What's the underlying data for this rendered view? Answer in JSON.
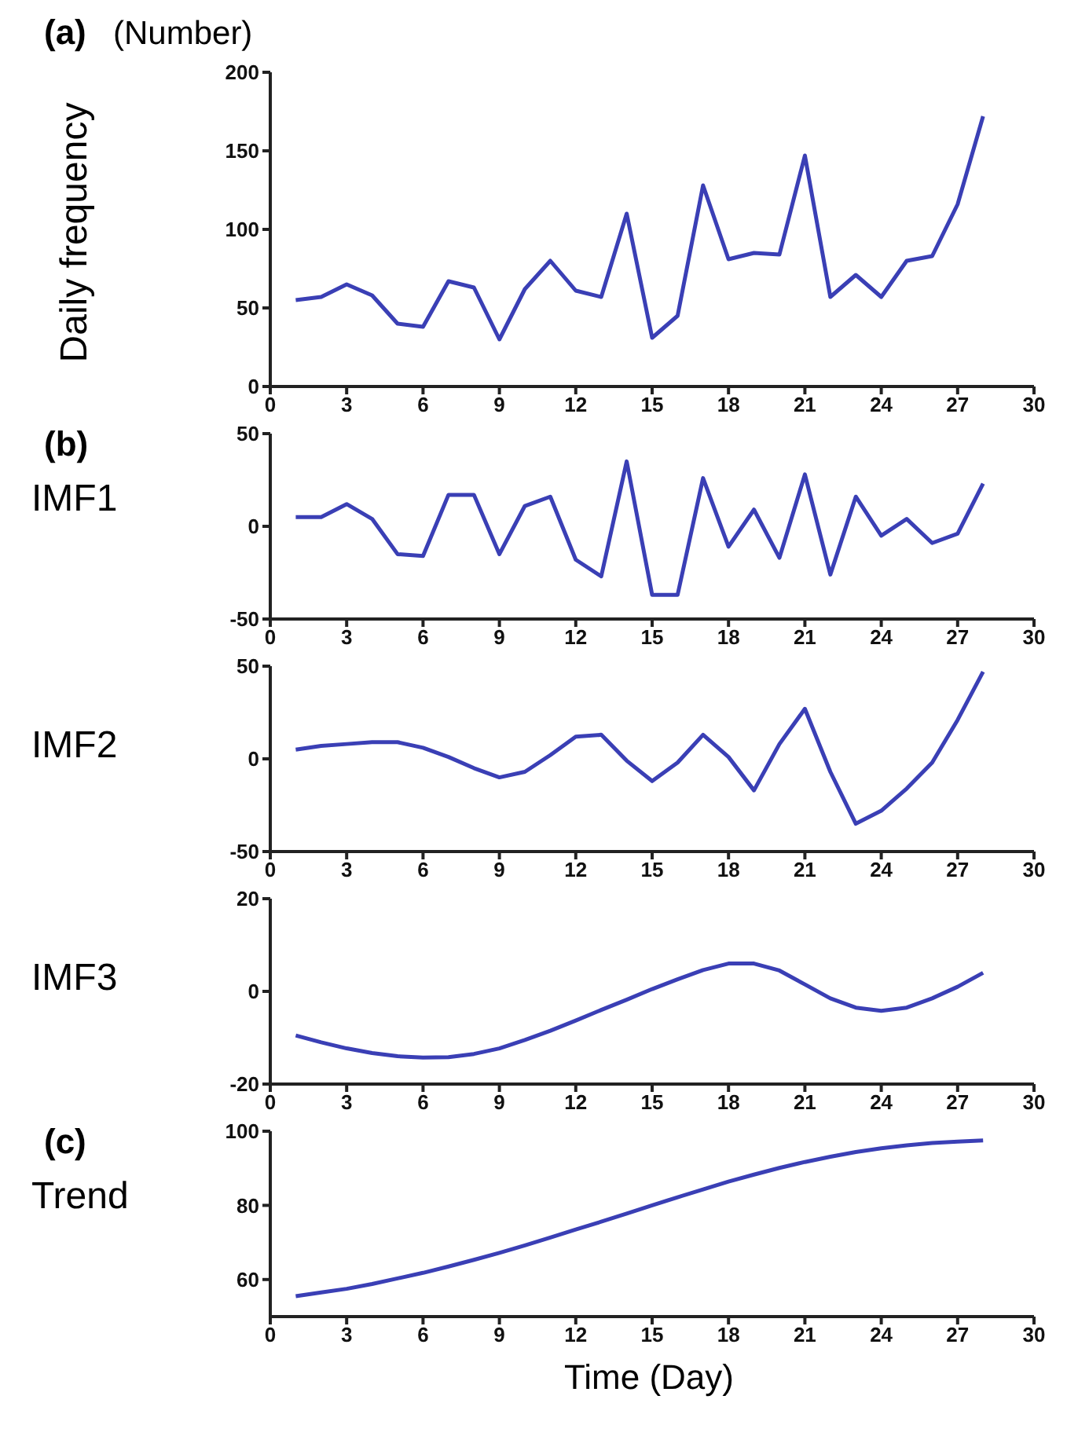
{
  "chart_data": [
    {
      "type": "line",
      "title": "(a)",
      "ylabel": "Daily frequency",
      "annotations": [
        "(Number)"
      ],
      "x": [
        1,
        2,
        3,
        4,
        5,
        6,
        7,
        8,
        9,
        10,
        11,
        12,
        13,
        14,
        15,
        16,
        17,
        18,
        19,
        20,
        21,
        22,
        23,
        24,
        25,
        26,
        27,
        28
      ],
      "values": [
        55,
        57,
        65,
        58,
        40,
        38,
        67,
        63,
        30,
        62,
        80,
        61,
        57,
        110,
        31,
        45,
        128,
        81,
        85,
        84,
        147,
        57,
        71,
        57,
        80,
        83,
        116,
        172
      ],
      "color": "#3a3fb5",
      "marker": "none",
      "grid": false,
      "xlim": [
        0,
        30
      ],
      "xticks": [
        0,
        3,
        6,
        9,
        12,
        15,
        18,
        21,
        24,
        27,
        30
      ],
      "ylim": [
        0,
        200
      ],
      "yticks": [
        0,
        50,
        100,
        150,
        200
      ]
    },
    {
      "type": "line",
      "title": "(b)",
      "ylabel": "IMF1",
      "x": [
        1,
        2,
        3,
        4,
        5,
        6,
        7,
        8,
        9,
        10,
        11,
        12,
        13,
        14,
        15,
        16,
        17,
        18,
        19,
        20,
        21,
        22,
        23,
        24,
        25,
        26,
        27,
        28
      ],
      "values": [
        5,
        5,
        12,
        4,
        -15,
        -16,
        17,
        17,
        -15,
        11,
        16,
        -18,
        -27,
        35,
        -37,
        -37,
        26,
        -11,
        9,
        -17,
        28,
        -26,
        16,
        -5,
        4,
        -9,
        -4,
        23
      ],
      "color": "#3a3fb5",
      "marker": "none",
      "grid": false,
      "xlim": [
        0,
        30
      ],
      "xticks": [
        0,
        3,
        6,
        9,
        12,
        15,
        18,
        21,
        24,
        27,
        30
      ],
      "ylim": [
        -50,
        50
      ],
      "yticks": [
        -50,
        0,
        50
      ]
    },
    {
      "type": "line",
      "ylabel": "IMF2",
      "x": [
        1,
        2,
        3,
        4,
        5,
        6,
        7,
        8,
        9,
        10,
        11,
        12,
        13,
        14,
        15,
        16,
        17,
        18,
        19,
        20,
        21,
        22,
        23,
        24,
        25,
        26,
        27,
        28
      ],
      "values": [
        5,
        7,
        8,
        9,
        9,
        6,
        1,
        -5,
        -10,
        -7,
        2,
        12,
        13,
        -1,
        -12,
        -2,
        13,
        1,
        -17,
        8,
        27,
        -7,
        -35,
        -28,
        -16,
        -2,
        21,
        47
      ],
      "color": "#3a3fb5",
      "marker": "none",
      "grid": false,
      "xlim": [
        0,
        30
      ],
      "xticks": [
        0,
        3,
        6,
        9,
        12,
        15,
        18,
        21,
        24,
        27,
        30
      ],
      "ylim": [
        -50,
        50
      ],
      "yticks": [
        -50,
        0,
        50
      ]
    },
    {
      "type": "line",
      "ylabel": "IMF3",
      "x": [
        1,
        2,
        3,
        4,
        5,
        6,
        7,
        8,
        9,
        10,
        11,
        12,
        13,
        14,
        15,
        16,
        17,
        18,
        19,
        20,
        21,
        22,
        23,
        24,
        25,
        26,
        27,
        28
      ],
      "values": [
        -9.5,
        -11,
        -12.3,
        -13.3,
        -14,
        -14.3,
        -14.2,
        -13.5,
        -12.3,
        -10.5,
        -8.5,
        -6.3,
        -4,
        -1.8,
        0.5,
        2.6,
        4.6,
        6,
        6,
        4.5,
        1.5,
        -1.5,
        -3.5,
        -4.2,
        -3.5,
        -1.5,
        1,
        4
      ],
      "color": "#3a3fb5",
      "marker": "none",
      "grid": false,
      "xlim": [
        0,
        30
      ],
      "xticks": [
        0,
        3,
        6,
        9,
        12,
        15,
        18,
        21,
        24,
        27,
        30
      ],
      "ylim": [
        -20,
        20
      ],
      "yticks": [
        -20,
        0,
        20
      ]
    },
    {
      "type": "line",
      "title": "(c)",
      "ylabel": "Trend",
      "xlabel": "Time (Day)",
      "x": [
        1,
        2,
        3,
        4,
        5,
        6,
        7,
        8,
        9,
        10,
        11,
        12,
        13,
        14,
        15,
        16,
        17,
        18,
        19,
        20,
        21,
        22,
        23,
        24,
        25,
        26,
        27,
        28
      ],
      "values": [
        55.5,
        56.5,
        57.5,
        58.8,
        60.3,
        61.8,
        63.5,
        65.3,
        67.2,
        69.2,
        71.3,
        73.5,
        75.6,
        77.8,
        80,
        82.2,
        84.3,
        86.4,
        88.3,
        90.1,
        91.7,
        93.1,
        94.4,
        95.4,
        96.2,
        96.8,
        97.2,
        97.5
      ],
      "color": "#3a3fb5",
      "marker": "none",
      "grid": false,
      "xlim": [
        0,
        30
      ],
      "xticks": [
        0,
        3,
        6,
        9,
        12,
        15,
        18,
        21,
        24,
        27,
        30
      ],
      "ylim": [
        50,
        100
      ],
      "yticks": [
        60,
        80,
        100
      ]
    }
  ]
}
